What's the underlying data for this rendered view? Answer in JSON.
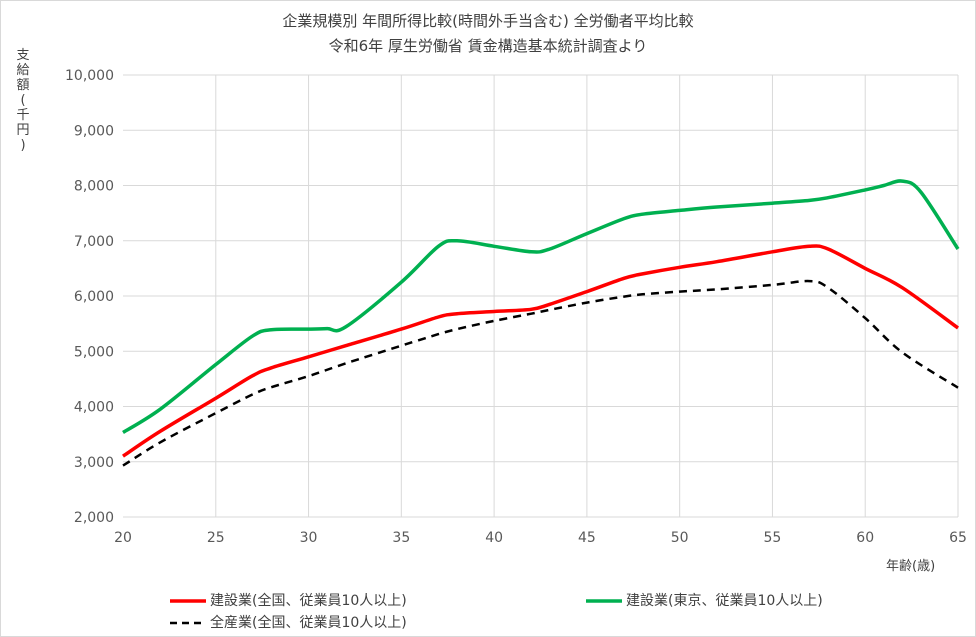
{
  "chart_data": {
    "type": "line",
    "title": "企業規模別 年間所得比較(時間外手当含む) 全労働者平均比較",
    "subtitle": "令和6年 厚生労働省 賃金構造基本統計調査より",
    "ylabel": "支給額(千円)",
    "xlabel": "年齢(歳)",
    "xlim": [
      20,
      65
    ],
    "ylim": [
      2000,
      10000
    ],
    "xticks": [
      "20",
      "25",
      "30",
      "35",
      "40",
      "45",
      "50",
      "55",
      "60",
      "65"
    ],
    "yticks": [
      "2,000",
      "3,000",
      "4,000",
      "5,000",
      "6,000",
      "7,000",
      "8,000",
      "9,000",
      "10,000"
    ],
    "grid": true,
    "legend_position": "bottom",
    "series": [
      {
        "name": "建設業(全国、従業員10人以上)",
        "color": "#ff0000",
        "dash": "solid",
        "x": [
          20,
          22,
          25,
          27,
          28,
          30,
          32,
          35,
          37,
          38,
          40,
          42,
          43,
          45,
          47,
          48,
          50,
          52,
          55,
          57,
          58,
          60,
          62,
          65
        ],
        "y": [
          3100,
          3550,
          4150,
          4560,
          4700,
          4900,
          5100,
          5400,
          5620,
          5680,
          5720,
          5760,
          5850,
          6080,
          6320,
          6400,
          6520,
          6620,
          6800,
          6900,
          6850,
          6500,
          6150,
          5420
        ]
      },
      {
        "name": "建設業(東京、従業員10人以上)",
        "color": "#00b050",
        "dash": "solid",
        "x": [
          20,
          22,
          25,
          27,
          28,
          30,
          31,
          32,
          35,
          37,
          38,
          40,
          42,
          43,
          45,
          47,
          48,
          50,
          52,
          55,
          57,
          58,
          60,
          61,
          62,
          63,
          65
        ],
        "y": [
          3530,
          3950,
          4760,
          5280,
          5390,
          5400,
          5410,
          5440,
          6250,
          6900,
          7000,
          6900,
          6800,
          6850,
          7130,
          7400,
          7480,
          7550,
          7610,
          7680,
          7730,
          7780,
          7920,
          8000,
          8080,
          7880,
          6850
        ]
      },
      {
        "name": "全産業(全国、従業員10人以上)",
        "color": "#000000",
        "dash": "dashed",
        "x": [
          20,
          22,
          25,
          27,
          28,
          30,
          32,
          35,
          37,
          38,
          40,
          42,
          43,
          45,
          47,
          48,
          50,
          52,
          55,
          57,
          58,
          60,
          62,
          65
        ],
        "y": [
          2930,
          3350,
          3880,
          4220,
          4350,
          4550,
          4780,
          5100,
          5310,
          5400,
          5550,
          5680,
          5750,
          5880,
          5990,
          6030,
          6080,
          6120,
          6200,
          6270,
          6150,
          5600,
          4980,
          4340
        ]
      }
    ]
  }
}
